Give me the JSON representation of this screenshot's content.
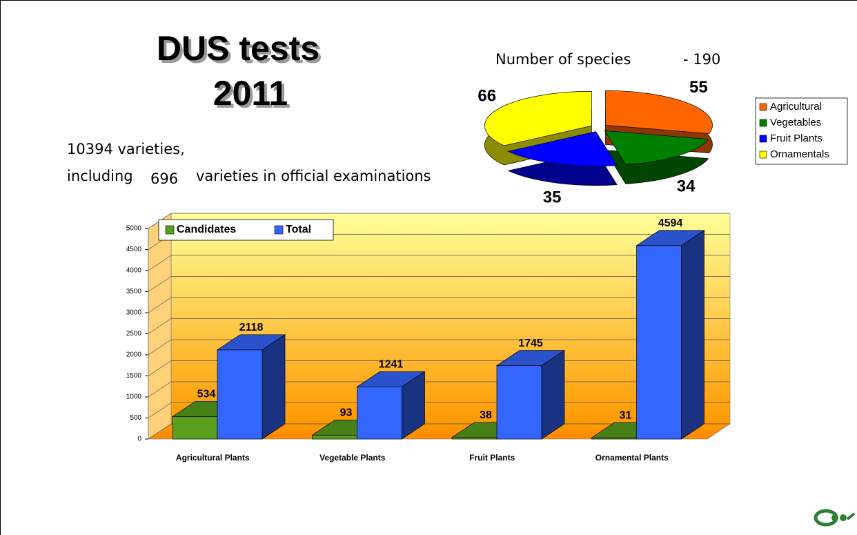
{
  "slide": {
    "title_line1": "DUS tests",
    "title_line2": "2011",
    "varieties": "10394 varieties,",
    "including": "including",
    "official_count": "696",
    "official_text": "varieties in official examinations",
    "species_label": "Number of species",
    "species_total": "- 190"
  },
  "chart_data": [
    {
      "type": "pie",
      "categories": [
        "Agricultural",
        "Vegetables",
        "Fruit Plants",
        "Ornamentals"
      ],
      "values": [
        55,
        34,
        35,
        66
      ],
      "colors": [
        "#ff6600",
        "#008000",
        "#0000ff",
        "#ffff00"
      ],
      "legend": "right"
    },
    {
      "type": "bar",
      "categories": [
        "Agricultural Plants",
        "Vegetable Plants",
        "Fruit Plants",
        "Ornamental Plants"
      ],
      "series": [
        {
          "name": "Candidates",
          "color": "#5aa01e",
          "values": [
            534,
            93,
            38,
            31
          ]
        },
        {
          "name": "Total",
          "color": "#3366ff",
          "values": [
            2118,
            1241,
            1745,
            4594
          ]
        }
      ],
      "ylim": [
        0,
        5000
      ],
      "yticks": [
        0,
        500,
        1000,
        1500,
        2000,
        2500,
        3000,
        3500,
        4000,
        4500,
        5000
      ],
      "grid": true,
      "legend": "top-left"
    }
  ]
}
